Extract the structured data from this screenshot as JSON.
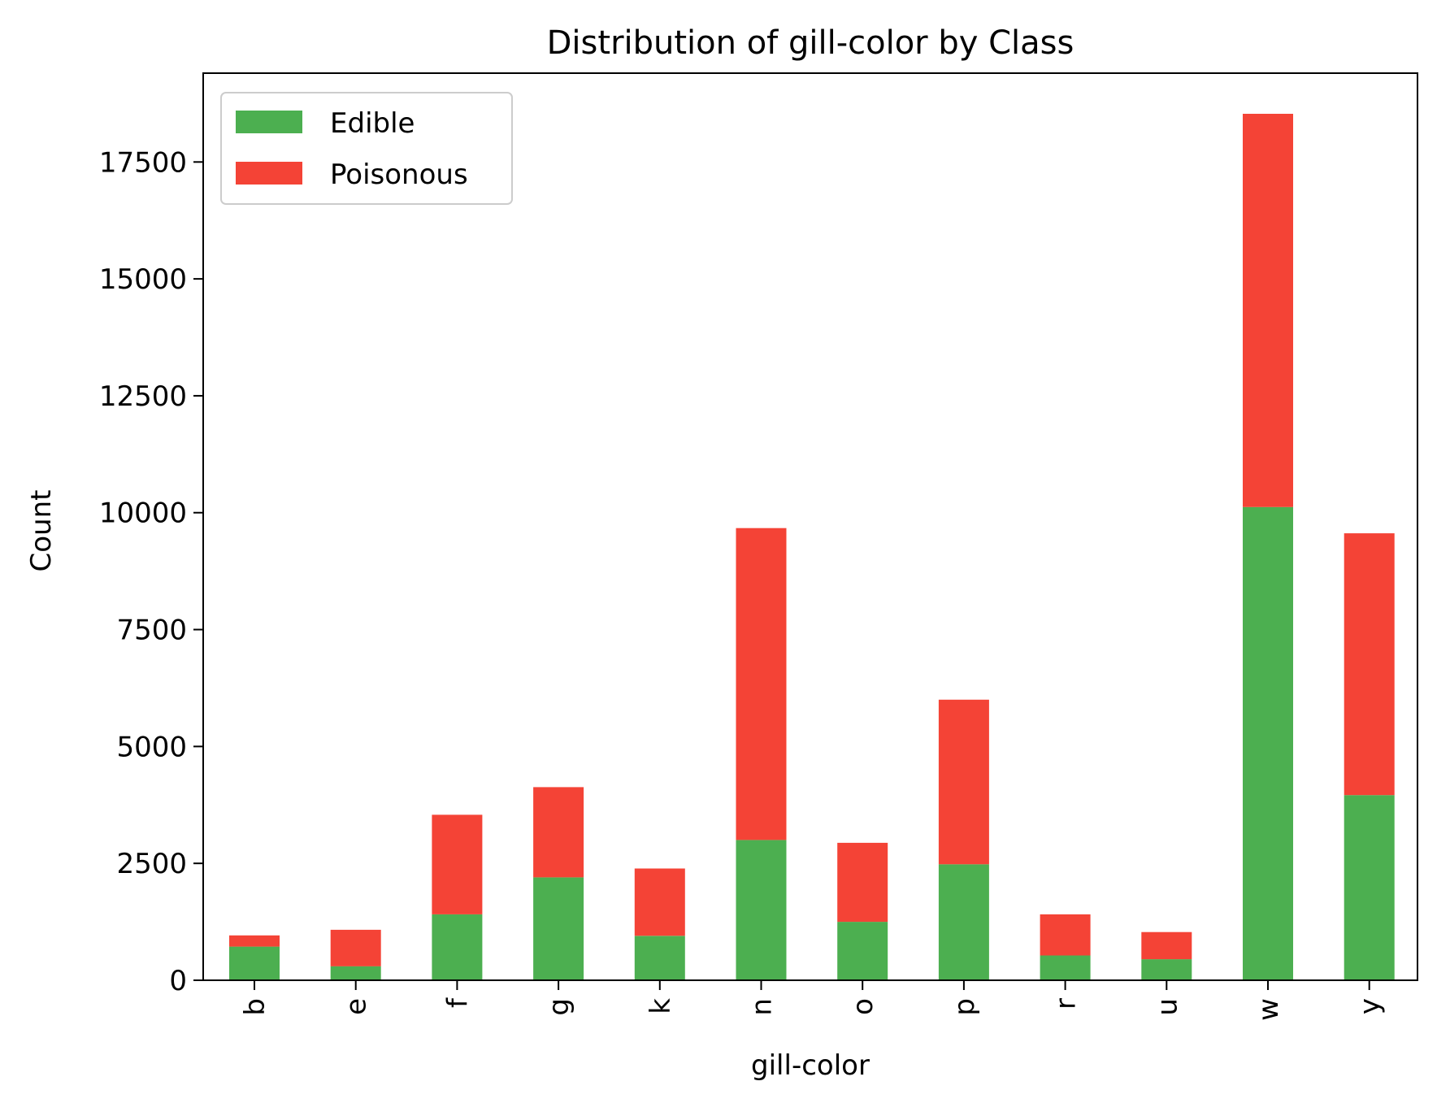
{
  "chart_data": {
    "type": "bar",
    "stacked": true,
    "title": "Distribution of gill-color by Class",
    "xlabel": "gill-color",
    "ylabel": "Count",
    "categories": [
      "b",
      "e",
      "f",
      "g",
      "k",
      "n",
      "o",
      "p",
      "r",
      "u",
      "w",
      "y"
    ],
    "series": [
      {
        "name": "Edible",
        "color": "#4caf50",
        "values": [
          720,
          300,
          1410,
          2200,
          950,
          3000,
          1250,
          2480,
          530,
          450,
          10120,
          3960
        ]
      },
      {
        "name": "Poisonous",
        "color": "#f44336",
        "values": [
          240,
          780,
          2130,
          1930,
          1440,
          6670,
          1690,
          3520,
          880,
          580,
          8410,
          5600
        ]
      }
    ],
    "ylim": [
      0,
      19400
    ],
    "yticks": [
      0,
      2500,
      5000,
      7500,
      10000,
      12500,
      15000,
      17500
    ],
    "legend_position": "top-left",
    "grid": false
  }
}
